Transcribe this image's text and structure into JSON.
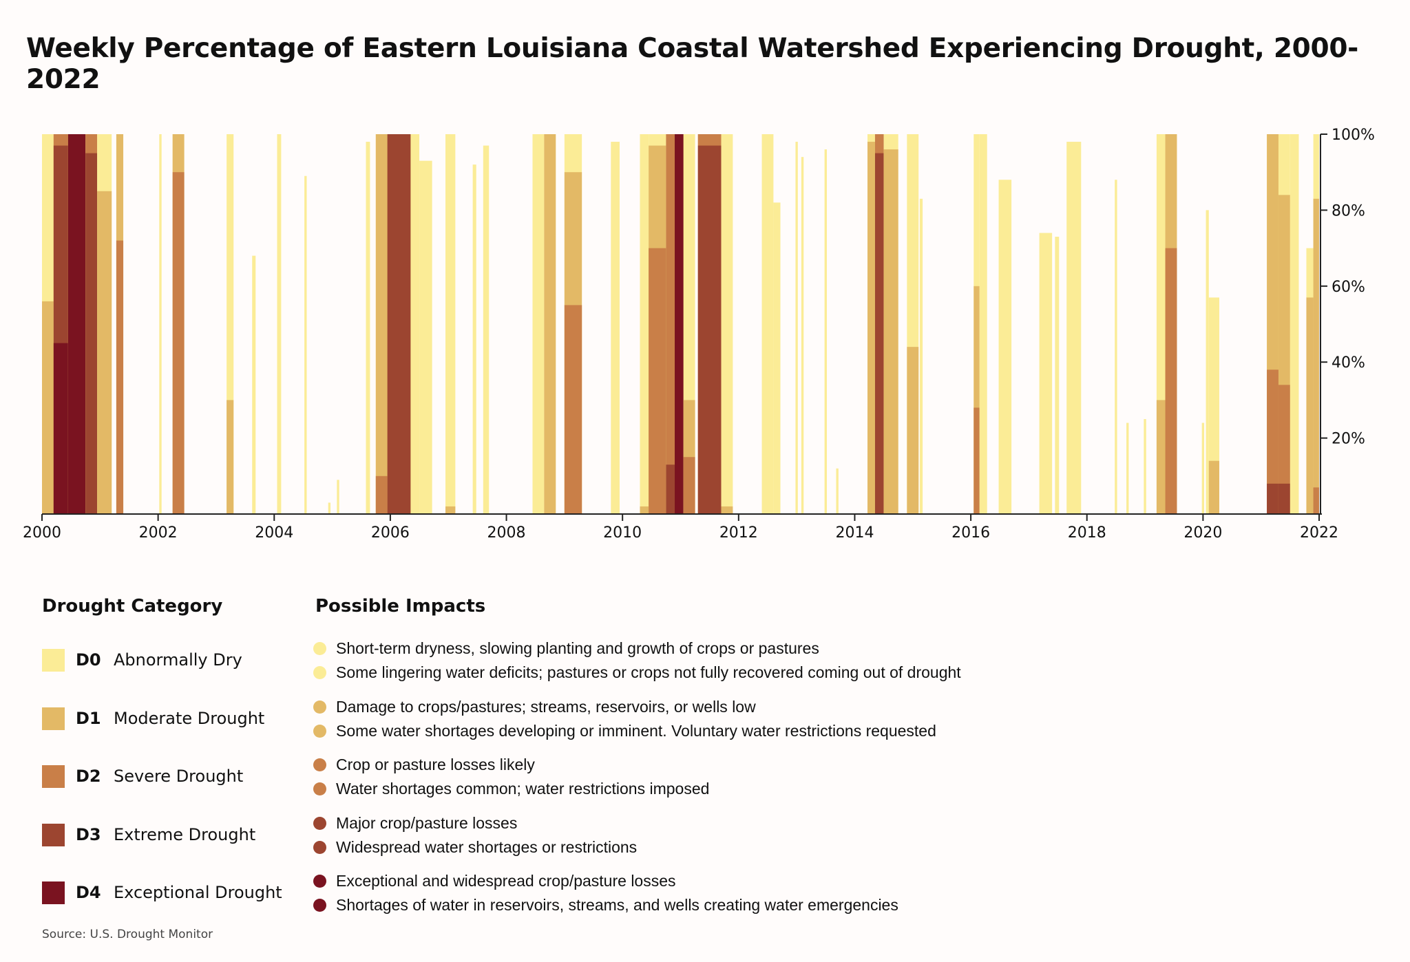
{
  "title": "Weekly Percentage of Eastern Louisiana Coastal Watershed Experiencing Drought, 2000-2022",
  "colors": {
    "D0": "#fbec96",
    "D1": "#e3b966",
    "D2": "#c97f48",
    "D3": "#9c4530",
    "D4": "#7a1320",
    "background": "#fffcfb"
  },
  "chart_data": {
    "type": "area",
    "title": "Weekly Percentage of Eastern Louisiana Coastal Watershed Experiencing Drought, 2000-2022",
    "xlim": [
      2000,
      2022
    ],
    "ylim": [
      0,
      100
    ],
    "x_ticks": [
      "2000",
      "2002",
      "2004",
      "2006",
      "2008",
      "2010",
      "2012",
      "2014",
      "2016",
      "2018",
      "2020",
      "2022"
    ],
    "y_ticks": [
      "20%",
      "40%",
      "60%",
      "80%",
      "100%"
    ],
    "y_axis_side": "right",
    "grid": false,
    "categories": [
      "D0",
      "D1",
      "D2",
      "D3",
      "D4"
    ],
    "episodes": [
      {
        "from": 2000.0,
        "to": 2000.2,
        "D0": 100,
        "D1": 56,
        "D2": 0,
        "D3": 0,
        "D4": 0
      },
      {
        "from": 2000.2,
        "to": 2000.45,
        "D0": 100,
        "D1": 100,
        "D2": 100,
        "D3": 97,
        "D4": 45
      },
      {
        "from": 2000.45,
        "to": 2000.75,
        "D0": 100,
        "D1": 100,
        "D2": 100,
        "D3": 100,
        "D4": 100
      },
      {
        "from": 2000.75,
        "to": 2000.95,
        "D0": 100,
        "D1": 100,
        "D2": 100,
        "D3": 95,
        "D4": 0
      },
      {
        "from": 2000.95,
        "to": 2001.2,
        "D0": 100,
        "D1": 85,
        "D2": 0,
        "D3": 0,
        "D4": 0
      },
      {
        "from": 2001.28,
        "to": 2001.4,
        "D0": 100,
        "D1": 100,
        "D2": 72,
        "D3": 0,
        "D4": 0
      },
      {
        "from": 2002.02,
        "to": 2002.06,
        "D0": 100,
        "D1": 0,
        "D2": 0,
        "D3": 0,
        "D4": 0
      },
      {
        "from": 2002.25,
        "to": 2002.45,
        "D0": 100,
        "D1": 100,
        "D2": 90,
        "D3": 0,
        "D4": 0
      },
      {
        "from": 2003.18,
        "to": 2003.3,
        "D0": 100,
        "D1": 30,
        "D2": 0,
        "D3": 0,
        "D4": 0
      },
      {
        "from": 2003.62,
        "to": 2003.68,
        "D0": 68,
        "D1": 0,
        "D2": 0,
        "D3": 0,
        "D4": 0
      },
      {
        "from": 2004.05,
        "to": 2004.12,
        "D0": 100,
        "D1": 0,
        "D2": 0,
        "D3": 0,
        "D4": 0
      },
      {
        "from": 2004.52,
        "to": 2004.56,
        "D0": 89,
        "D1": 0,
        "D2": 0,
        "D3": 0,
        "D4": 0
      },
      {
        "from": 2004.93,
        "to": 2004.97,
        "D0": 3,
        "D1": 0,
        "D2": 0,
        "D3": 0,
        "D4": 0
      },
      {
        "from": 2005.08,
        "to": 2005.12,
        "D0": 9,
        "D1": 0,
        "D2": 0,
        "D3": 0,
        "D4": 0
      },
      {
        "from": 2005.58,
        "to": 2005.65,
        "D0": 98,
        "D1": 0,
        "D2": 0,
        "D3": 0,
        "D4": 0
      },
      {
        "from": 2005.75,
        "to": 2005.95,
        "D0": 100,
        "D1": 100,
        "D2": 10,
        "D3": 0,
        "D4": 0
      },
      {
        "from": 2005.95,
        "to": 2006.35,
        "D0": 100,
        "D1": 100,
        "D2": 100,
        "D3": 100,
        "D4": 0
      },
      {
        "from": 2006.35,
        "to": 2006.5,
        "D0": 100,
        "D1": 0,
        "D2": 0,
        "D3": 0,
        "D4": 0
      },
      {
        "from": 2006.5,
        "to": 2006.72,
        "D0": 93,
        "D1": 0,
        "D2": 0,
        "D3": 0,
        "D4": 0
      },
      {
        "from": 2006.95,
        "to": 2007.12,
        "D0": 100,
        "D1": 2,
        "D2": 0,
        "D3": 0,
        "D4": 0
      },
      {
        "from": 2007.42,
        "to": 2007.48,
        "D0": 92,
        "D1": 0,
        "D2": 0,
        "D3": 0,
        "D4": 0
      },
      {
        "from": 2007.6,
        "to": 2007.7,
        "D0": 97,
        "D1": 0,
        "D2": 0,
        "D3": 0,
        "D4": 0
      },
      {
        "from": 2008.45,
        "to": 2008.65,
        "D0": 100,
        "D1": 0,
        "D2": 0,
        "D3": 0,
        "D4": 0
      },
      {
        "from": 2008.65,
        "to": 2008.85,
        "D0": 100,
        "D1": 100,
        "D2": 0,
        "D3": 0,
        "D4": 0
      },
      {
        "from": 2009.0,
        "to": 2009.3,
        "D0": 100,
        "D1": 90,
        "D2": 55,
        "D3": 0,
        "D4": 0
      },
      {
        "from": 2009.8,
        "to": 2009.95,
        "D0": 98,
        "D1": 0,
        "D2": 0,
        "D3": 0,
        "D4": 0
      },
      {
        "from": 2010.3,
        "to": 2010.45,
        "D0": 100,
        "D1": 2,
        "D2": 0,
        "D3": 0,
        "D4": 0
      },
      {
        "from": 2010.45,
        "to": 2010.75,
        "D0": 100,
        "D1": 97,
        "D2": 70,
        "D3": 0,
        "D4": 0
      },
      {
        "from": 2010.75,
        "to": 2010.9,
        "D0": 100,
        "D1": 100,
        "D2": 100,
        "D3": 13,
        "D4": 0
      },
      {
        "from": 2010.9,
        "to": 2011.05,
        "D0": 100,
        "D1": 100,
        "D2": 100,
        "D3": 100,
        "D4": 100
      },
      {
        "from": 2011.05,
        "to": 2011.25,
        "D0": 100,
        "D1": 30,
        "D2": 15,
        "D3": 0,
        "D4": 0
      },
      {
        "from": 2011.3,
        "to": 2011.7,
        "D0": 100,
        "D1": 100,
        "D2": 100,
        "D3": 97,
        "D4": 0
      },
      {
        "from": 2011.7,
        "to": 2011.9,
        "D0": 100,
        "D1": 2,
        "D2": 0,
        "D3": 0,
        "D4": 0
      },
      {
        "from": 2012.4,
        "to": 2012.6,
        "D0": 100,
        "D1": 0,
        "D2": 0,
        "D3": 0,
        "D4": 0
      },
      {
        "from": 2012.6,
        "to": 2012.72,
        "D0": 82,
        "D1": 0,
        "D2": 0,
        "D3": 0,
        "D4": 0
      },
      {
        "from": 2012.98,
        "to": 2013.02,
        "D0": 98,
        "D1": 0,
        "D2": 0,
        "D3": 0,
        "D4": 0
      },
      {
        "from": 2013.08,
        "to": 2013.12,
        "D0": 94,
        "D1": 0,
        "D2": 0,
        "D3": 0,
        "D4": 0
      },
      {
        "from": 2013.48,
        "to": 2013.52,
        "D0": 96,
        "D1": 0,
        "D2": 0,
        "D3": 0,
        "D4": 0
      },
      {
        "from": 2013.68,
        "to": 2013.72,
        "D0": 12,
        "D1": 0,
        "D2": 0,
        "D3": 0,
        "D4": 0
      },
      {
        "from": 2014.22,
        "to": 2014.35,
        "D0": 100,
        "D1": 98,
        "D2": 0,
        "D3": 0,
        "D4": 0
      },
      {
        "from": 2014.35,
        "to": 2014.5,
        "D0": 100,
        "D1": 100,
        "D2": 100,
        "D3": 95,
        "D4": 0
      },
      {
        "from": 2014.5,
        "to": 2014.75,
        "D0": 100,
        "D1": 96,
        "D2": 0,
        "D3": 0,
        "D4": 0
      },
      {
        "from": 2014.9,
        "to": 2015.1,
        "D0": 100,
        "D1": 44,
        "D2": 0,
        "D3": 0,
        "D4": 0
      },
      {
        "from": 2015.12,
        "to": 2015.17,
        "D0": 83,
        "D1": 0,
        "D2": 0,
        "D3": 0,
        "D4": 0
      },
      {
        "from": 2016.05,
        "to": 2016.15,
        "D0": 100,
        "D1": 60,
        "D2": 28,
        "D3": 0,
        "D4": 0
      },
      {
        "from": 2016.15,
        "to": 2016.28,
        "D0": 100,
        "D1": 0,
        "D2": 0,
        "D3": 0,
        "D4": 0
      },
      {
        "from": 2016.48,
        "to": 2016.7,
        "D0": 88,
        "D1": 0,
        "D2": 0,
        "D3": 0,
        "D4": 0
      },
      {
        "from": 2017.18,
        "to": 2017.4,
        "D0": 74,
        "D1": 0,
        "D2": 0,
        "D3": 0,
        "D4": 0
      },
      {
        "from": 2017.45,
        "to": 2017.52,
        "D0": 73,
        "D1": 0,
        "D2": 0,
        "D3": 0,
        "D4": 0
      },
      {
        "from": 2017.65,
        "to": 2017.9,
        "D0": 98,
        "D1": 0,
        "D2": 0,
        "D3": 0,
        "D4": 0
      },
      {
        "from": 2018.48,
        "to": 2018.52,
        "D0": 88,
        "D1": 0,
        "D2": 0,
        "D3": 0,
        "D4": 0
      },
      {
        "from": 2018.68,
        "to": 2018.72,
        "D0": 24,
        "D1": 0,
        "D2": 0,
        "D3": 0,
        "D4": 0
      },
      {
        "from": 2018.98,
        "to": 2019.02,
        "D0": 25,
        "D1": 0,
        "D2": 0,
        "D3": 0,
        "D4": 0
      },
      {
        "from": 2019.2,
        "to": 2019.35,
        "D0": 100,
        "D1": 30,
        "D2": 0,
        "D3": 0,
        "D4": 0
      },
      {
        "from": 2019.35,
        "to": 2019.55,
        "D0": 100,
        "D1": 100,
        "D2": 70,
        "D3": 0,
        "D4": 0
      },
      {
        "from": 2019.98,
        "to": 2020.02,
        "D0": 24,
        "D1": 0,
        "D2": 0,
        "D3": 0,
        "D4": 0
      },
      {
        "from": 2020.05,
        "to": 2020.1,
        "D0": 80,
        "D1": 0,
        "D2": 0,
        "D3": 0,
        "D4": 0
      },
      {
        "from": 2020.1,
        "to": 2020.28,
        "D0": 57,
        "D1": 14,
        "D2": 0,
        "D3": 0,
        "D4": 0
      },
      {
        "from": 2021.1,
        "to": 2021.3,
        "D0": 100,
        "D1": 100,
        "D2": 38,
        "D3": 8,
        "D4": 0
      },
      {
        "from": 2021.3,
        "to": 2021.5,
        "D0": 100,
        "D1": 84,
        "D2": 34,
        "D3": 8,
        "D4": 0
      },
      {
        "from": 2021.5,
        "to": 2021.65,
        "D0": 100,
        "D1": 0,
        "D2": 0,
        "D3": 0,
        "D4": 0
      },
      {
        "from": 2021.78,
        "to": 2021.9,
        "D0": 70,
        "D1": 57,
        "D2": 0,
        "D3": 0,
        "D4": 0
      },
      {
        "from": 2021.9,
        "to": 2022.0,
        "D0": 100,
        "D1": 83,
        "D2": 7,
        "D3": 0,
        "D4": 0
      }
    ]
  },
  "legend": {
    "category_heading": "Drought Category",
    "impacts_heading": "Possible Impacts",
    "categories": [
      {
        "code": "D0",
        "label": "Abnormally Dry",
        "impacts": [
          "Short-term dryness, slowing planting and growth of crops or pastures",
          "Some lingering water deficits; pastures or crops not fully recovered coming out of drought"
        ]
      },
      {
        "code": "D1",
        "label": "Moderate Drought",
        "impacts": [
          "Damage to crops/pastures; streams, reservoirs, or wells low",
          "Some water shortages developing or imminent. Voluntary water restrictions requested"
        ]
      },
      {
        "code": "D2",
        "label": "Severe Drought",
        "impacts": [
          "Crop or pasture losses likely",
          "Water shortages common; water restrictions imposed"
        ]
      },
      {
        "code": "D3",
        "label": "Extreme Drought",
        "impacts": [
          "Major crop/pasture losses",
          "Widespread water shortages or restrictions"
        ]
      },
      {
        "code": "D4",
        "label": "Exceptional Drought",
        "impacts": [
          "Exceptional and widespread crop/pasture losses",
          "Shortages of water in reservoirs, streams, and wells creating water emergencies"
        ]
      }
    ]
  },
  "source": "Source: U.S. Drought Monitor"
}
